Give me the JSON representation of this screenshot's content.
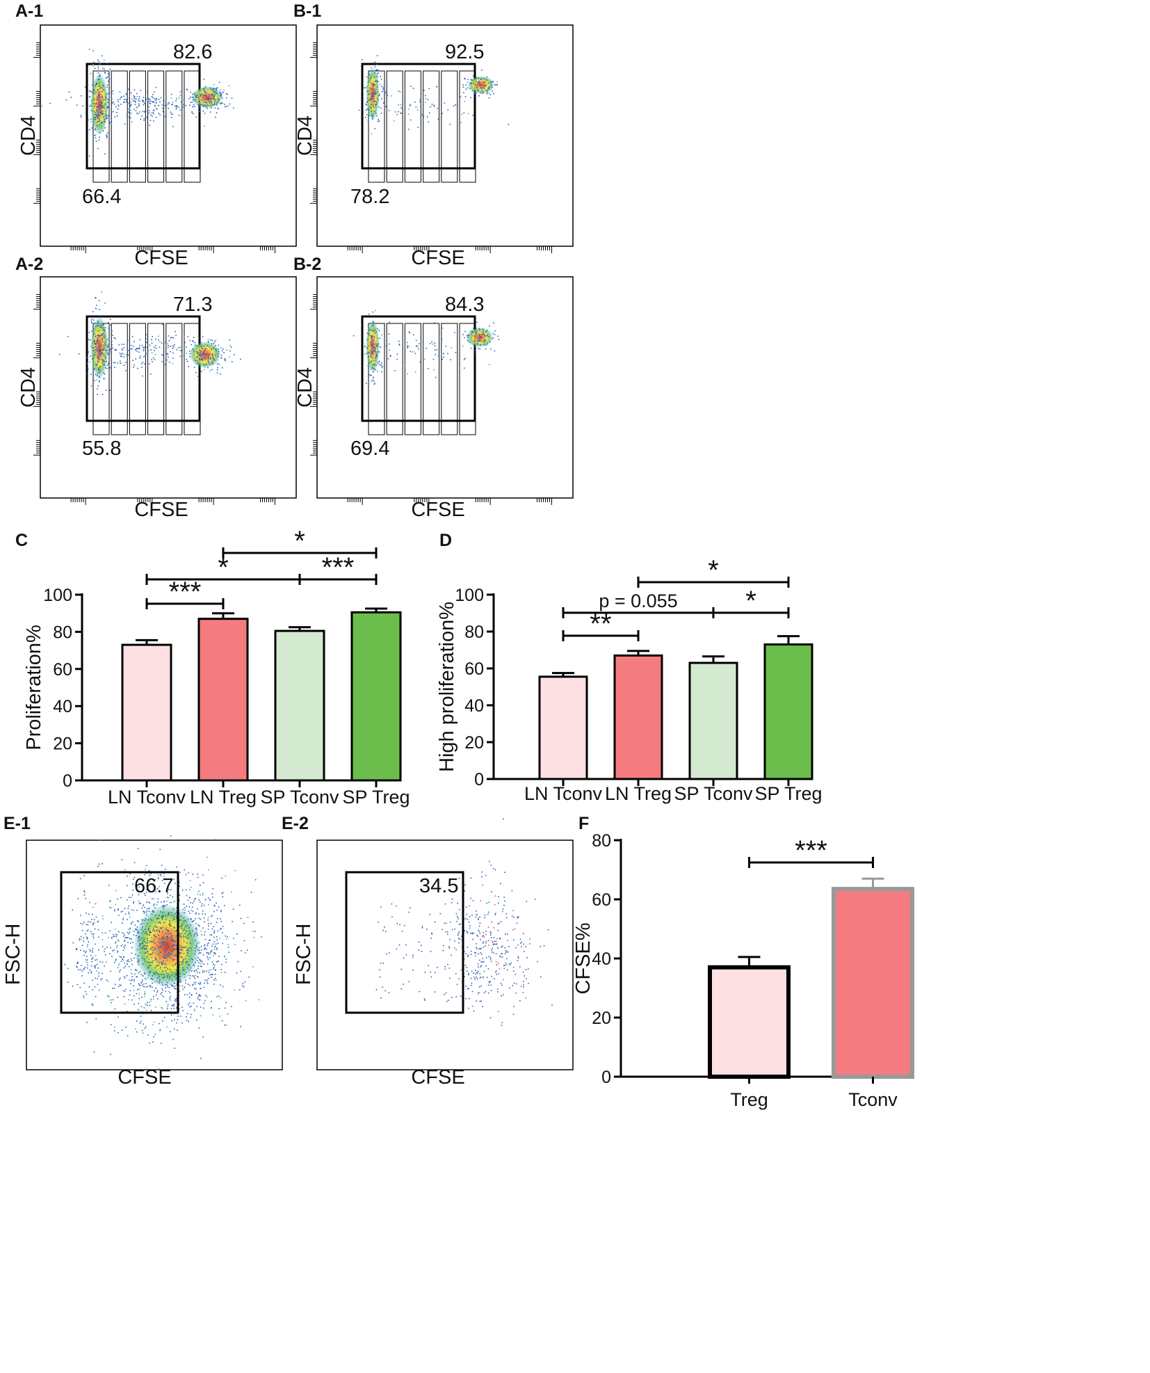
{
  "panels": {
    "A1": {
      "label": "A-1",
      "x_label": "CFSE",
      "y_label": "CD4",
      "gate_total": "82.6",
      "gate_divided": "66.4"
    },
    "B1": {
      "label": "B-1",
      "x_label": "CFSE",
      "y_label": "CD4",
      "gate_total": "92.5",
      "gate_divided": "78.2"
    },
    "A2": {
      "label": "A-2",
      "x_label": "CFSE",
      "y_label": "CD4",
      "gate_total": "71.3",
      "gate_divided": "55.8"
    },
    "B2": {
      "label": "B-2",
      "x_label": "CFSE",
      "y_label": "CD4",
      "gate_total": "84.3",
      "gate_divided": "69.4"
    },
    "C": {
      "label": "C"
    },
    "D": {
      "label": "D"
    },
    "E1": {
      "label": "E-1",
      "x_label": "CFSE",
      "y_label": "FSC-H",
      "gate_value": "66.7"
    },
    "E2": {
      "label": "E-2",
      "x_label": "CFSE",
      "y_label": "FSC-H",
      "gate_value": "34.5"
    },
    "F": {
      "label": "F"
    }
  },
  "colors": {
    "ln_tconv": "#fce0e4",
    "ln_treg": "#f47c80",
    "sp_tconv": "#d4ead0",
    "sp_treg": "#6cbe4c",
    "tconv_outline": "#999999"
  },
  "chart_data": [
    {
      "id": "C",
      "type": "bar",
      "categories": [
        "LN Tconv",
        "LN Treg",
        "SP Tconv",
        "SP Treg"
      ],
      "values": [
        73,
        87,
        80.5,
        90.5
      ],
      "errors": [
        2.5,
        3,
        2,
        2
      ],
      "ylabel": "Proliferation%",
      "ylim": [
        0,
        100
      ],
      "yticks": [
        "0",
        "20",
        "40",
        "60",
        "80",
        "100"
      ],
      "significance": [
        {
          "from": 0,
          "to": 1,
          "label": "***"
        },
        {
          "from": 0,
          "to": 2,
          "label": "*"
        },
        {
          "from": 2,
          "to": 3,
          "label": "***"
        },
        {
          "from": 1,
          "to": 3,
          "label": "*"
        }
      ]
    },
    {
      "id": "D",
      "type": "bar",
      "categories": [
        "LN Tconv",
        "LN Treg",
        "SP Tconv",
        "SP Treg"
      ],
      "values": [
        55.5,
        67,
        63,
        73
      ],
      "errors": [
        2,
        2.5,
        3.5,
        4.5
      ],
      "ylabel": "High proliferation%",
      "ylim": [
        0,
        100
      ],
      "yticks": [
        "0",
        "20",
        "40",
        "60",
        "80",
        "100"
      ],
      "significance": [
        {
          "from": 0,
          "to": 1,
          "label": "**"
        },
        {
          "from": 0,
          "to": 2,
          "label": "p = 0.055"
        },
        {
          "from": 2,
          "to": 3,
          "label": "*"
        },
        {
          "from": 1,
          "to": 3,
          "label": "*"
        }
      ]
    },
    {
      "id": "F",
      "type": "bar",
      "categories": [
        "Treg",
        "Tconv"
      ],
      "values": [
        37,
        63.5
      ],
      "errors": [
        3.5,
        3.5
      ],
      "ylabel": "CFSE%",
      "ylim": [
        0,
        80
      ],
      "yticks": [
        "0",
        "20",
        "40",
        "60",
        "80"
      ],
      "significance": [
        {
          "from": 0,
          "to": 1,
          "label": "***"
        }
      ]
    }
  ]
}
